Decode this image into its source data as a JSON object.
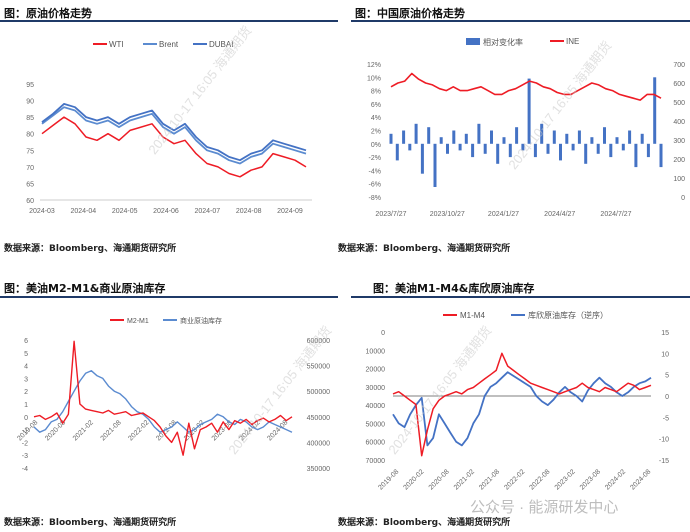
{
  "panels": [
    {
      "title": "图：原油价格走势",
      "source": "数据来源：Bloomberg、海通期货研究所"
    },
    {
      "title": "图：中国原油价格走势",
      "source": "数据来源：Bloomberg、海通期货研究所"
    },
    {
      "title": "图：美油M2-M1&商业原油库存",
      "source": "数据来源：Bloomberg、海通期货研究所"
    },
    {
      "title": "图：美油M1-M4&库欣原油库存",
      "source": "数据来源：Bloomberg、海通期货研究所"
    }
  ],
  "footer": {
    "brand": "公众号 · 能源研发中心"
  },
  "colors": {
    "red": "#ee1c25",
    "blue": "#4472c4",
    "rule": "#1f3a68"
  },
  "chart_data": [
    {
      "type": "line",
      "x_ticks": [
        "2024-03",
        "2024-04",
        "2024-05",
        "2024-06",
        "2024-07",
        "2024-08",
        "2024-09"
      ],
      "y_ticks": [
        "60",
        "65",
        "70",
        "75",
        "80",
        "85",
        "90",
        "95"
      ],
      "ylim": [
        60,
        95
      ],
      "legend_position": "top",
      "series": [
        {
          "name": "WTI",
          "color": "#ee1c25",
          "values": [
            80,
            82.5,
            85,
            83,
            79,
            78,
            80,
            78,
            81,
            82,
            83,
            79,
            77,
            78,
            74,
            71,
            70,
            68,
            67,
            69,
            70,
            74,
            73,
            72,
            70
          ]
        },
        {
          "name": "Brent",
          "color": "#5b8bd0",
          "values": [
            83,
            85.5,
            88,
            87,
            84,
            83,
            84,
            82,
            84,
            85,
            86,
            82,
            80,
            82,
            78,
            75,
            74,
            72,
            71,
            73,
            74,
            77,
            76,
            75,
            74
          ]
        },
        {
          "name": "DUBAI",
          "color": "#4472c4",
          "values": [
            83.5,
            86,
            89,
            88,
            85,
            84,
            85,
            83,
            85,
            86,
            87,
            83,
            81,
            83,
            79,
            76,
            75,
            73,
            72,
            74,
            75,
            78,
            77,
            76,
            75
          ]
        }
      ]
    },
    {
      "type": "bar",
      "x_ticks": [
        "2023/7/27",
        "2023/10/27",
        "2024/1/27",
        "2024/4/27",
        "2024/7/27"
      ],
      "y_left_ticks": [
        "-8%",
        "-6%",
        "-4%",
        "-2%",
        "0%",
        "2%",
        "4%",
        "6%",
        "8%",
        "10%",
        "12%"
      ],
      "ylim_left": [
        -8,
        12
      ],
      "y_right_ticks": [
        "0",
        "100",
        "200",
        "300",
        "400",
        "500",
        "600",
        "700"
      ],
      "ylim_right": [
        0,
        700
      ],
      "legend_position": "top",
      "series": [
        {
          "name": "相对变化率",
          "color": "#4472c4",
          "axis": "left",
          "values": [
            1.5,
            -2.5,
            2,
            -1,
            3,
            -4.5,
            2.5,
            -6.5,
            1,
            -1.5,
            2,
            -1,
            1.5,
            -2,
            3,
            -1.5,
            2,
            -3,
            1,
            -2,
            2.5,
            -1,
            9.8,
            -2,
            3,
            -1.5,
            2,
            -2.5,
            1.5,
            -1,
            2,
            -3,
            1,
            -1.5,
            2.5,
            -2,
            1,
            -1,
            2,
            -3.5,
            1.5,
            -2,
            10,
            -3.5
          ]
        },
        {
          "name": "INE",
          "color": "#ee1c25",
          "axis": "right",
          "values": [
            580,
            600,
            610,
            650,
            620,
            600,
            590,
            570,
            560,
            580,
            560,
            560,
            570,
            580,
            560,
            540,
            540,
            560,
            570,
            590,
            610,
            600,
            580,
            570,
            550,
            540,
            540,
            560,
            580,
            600,
            590,
            570,
            560,
            540,
            530,
            520,
            510,
            540,
            540,
            520
          ]
        }
      ]
    },
    {
      "type": "line",
      "x_ticks": [
        "2019-08",
        "2020-08",
        "2021-02",
        "2021-08",
        "2022-02",
        "2022-08",
        "2023-02",
        "2023-08",
        "2024-02",
        "2024-08"
      ],
      "y_left_ticks": [
        "-4",
        "-3",
        "-2",
        "-1",
        "0",
        "1",
        "2",
        "3",
        "4",
        "5",
        "6"
      ],
      "ylim_left": [
        -4,
        6
      ],
      "y_right_ticks": [
        "350000",
        "400000",
        "450000",
        "500000",
        "550000",
        "600000"
      ],
      "ylim_right": [
        350000,
        600000
      ],
      "legend_position": "top",
      "series": [
        {
          "name": "M2-M1",
          "color": "#ee1c25",
          "axis": "left",
          "values": [
            0,
            0.1,
            -0.2,
            0,
            0.3,
            -0.5,
            0.2,
            5.9,
            1,
            0.6,
            0.5,
            0.4,
            0.3,
            0.5,
            0.2,
            0.3,
            0.4,
            0.1,
            0.2,
            0.3,
            0,
            -0.3,
            -0.8,
            -1.5,
            -2,
            -1.2,
            -3,
            -0.5,
            -2.5,
            -1,
            -0.8,
            -0.5,
            -1.2,
            -0.4,
            -1,
            -0.3,
            -0.5,
            -0.2,
            -0.6,
            -0.3,
            -0.1,
            -0.4,
            -0.2,
            0.1,
            -0.3,
            0
          ]
        },
        {
          "name": "商业原油库存",
          "color": "#5b8bd0",
          "axis": "right",
          "values": [
            430000,
            420000,
            425000,
            440000,
            445000,
            460000,
            480000,
            500000,
            520000,
            535000,
            540000,
            530000,
            525000,
            510000,
            500000,
            495000,
            485000,
            470000,
            460000,
            455000,
            445000,
            430000,
            420000,
            425000,
            430000,
            440000,
            430000,
            420000,
            425000,
            435000,
            440000,
            445000,
            455000,
            450000,
            440000,
            435000,
            445000,
            440000,
            430000,
            425000,
            430000,
            440000,
            435000,
            430000,
            425000,
            420000
          ]
        }
      ]
    },
    {
      "type": "line",
      "x_ticks": [
        "2019-08",
        "2020-02",
        "2020-08",
        "2021-02",
        "2021-08",
        "2022-02",
        "2022-08",
        "2023-02",
        "2023-08",
        "2024-02",
        "2024-08"
      ],
      "y_left_ticks": [
        "0",
        "10000",
        "20000",
        "30000",
        "40000",
        "50000",
        "60000",
        "70000"
      ],
      "ylim_left": [
        0,
        70000
      ],
      "y_left_inverted": true,
      "y_right_ticks": [
        "-15",
        "-10",
        "-5",
        "0",
        "5",
        "10",
        "15"
      ],
      "ylim_right": [
        -15,
        15
      ],
      "legend_position": "top",
      "series": [
        {
          "name": "M1-M4",
          "color": "#ee1c25",
          "axis": "right",
          "values": [
            0.5,
            1,
            0,
            -1,
            -2,
            -14,
            -8,
            -3,
            -1,
            0,
            0.5,
            1,
            0.5,
            1.5,
            2,
            3,
            4,
            5,
            6,
            10,
            7,
            6,
            5,
            4,
            3,
            2.5,
            2,
            1.5,
            1,
            0.5,
            1,
            1.5,
            2,
            3,
            2,
            1.5,
            1,
            2,
            1.5,
            1,
            2,
            3,
            2.5,
            1.5,
            2,
            2.5
          ]
        },
        {
          "name": "库欣原油库存（逆序）",
          "color": "#4472c4",
          "axis": "left",
          "values": [
            45000,
            50000,
            52000,
            45000,
            40000,
            36000,
            62000,
            58000,
            45000,
            50000,
            55000,
            60000,
            62000,
            58000,
            50000,
            45000,
            35000,
            30000,
            28000,
            25000,
            22000,
            24000,
            26000,
            28000,
            30000,
            35000,
            38000,
            40000,
            37000,
            33000,
            30000,
            33000,
            35000,
            38000,
            32000,
            28000,
            25000,
            28000,
            30000,
            33000,
            35000,
            33000,
            30000,
            28000,
            27000,
            25000
          ]
        }
      ]
    }
  ]
}
